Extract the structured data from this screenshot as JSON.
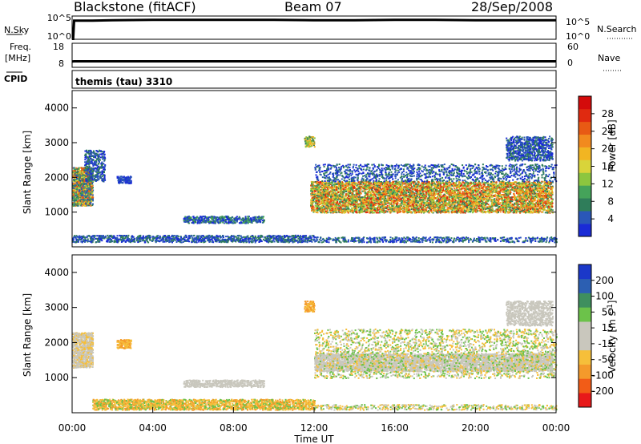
{
  "header": {
    "title": "Blackstone (fitACF)",
    "beam": "Beam 07",
    "date": "28/Sep/2008"
  },
  "left_labels": {
    "nsky": "N.Sky",
    "freq": "Freq.",
    "freq_unit": "[MHz]",
    "cpid": "CPID"
  },
  "right_labels": {
    "nsearch": "N.Search",
    "nave": "Nave"
  },
  "cpid_text": "themis (tau) 3310",
  "colors": {
    "power": [
      "#1a2bd6",
      "#2a57b8",
      "#2f7d5a",
      "#45a35a",
      "#8cc63f",
      "#d9d43a",
      "#f2b522",
      "#f28a1e",
      "#e85a14",
      "#e02a10",
      "#d40b0b"
    ],
    "vel": [
      "#e8191a",
      "#f25c17",
      "#f49a2b",
      "#f6bf3a",
      "#c9c7bd",
      "#c9c7bd",
      "#6cc24a",
      "#3f8f5e",
      "#2c5fb2",
      "#1b38c9"
    ]
  },
  "chart_data": [
    {
      "type": "line",
      "panel": "N.Sky / N.Search",
      "ylabel_left": "N.Sky",
      "ylabel_right": "N.Search",
      "y_ticks_left": [
        "10^5",
        "10^0"
      ],
      "y_ticks_right": [
        "10^5",
        "10^0"
      ],
      "x_hours": [
        0,
        0.05,
        0.1,
        1,
        2,
        4,
        6,
        8,
        10,
        12,
        14,
        16,
        18,
        20,
        22,
        24
      ],
      "series": [
        {
          "name": "N.Sky",
          "values": [
            0.1,
            0.1,
            4.3,
            4.3,
            4.4,
            4.5,
            4.5,
            4.5,
            4.5,
            4.4,
            4.4,
            4.5,
            4.5,
            4.4,
            4.4,
            4.4
          ]
        }
      ]
    },
    {
      "type": "line",
      "panel": "Freq / Nave",
      "ylabel_left": "Freq. [MHz]",
      "ylabel_right": "Nave",
      "y_ticks_left": [
        "18",
        "8"
      ],
      "y_ticks_right": [
        "60",
        "0"
      ],
      "x_hours": [
        0,
        0.1,
        6,
        12,
        18,
        20,
        21,
        24
      ],
      "series": [
        {
          "name": "Freq",
          "values": [
            10,
            10.1,
            10.1,
            10.1,
            10.1,
            10.1,
            10.1,
            10.1
          ]
        }
      ]
    },
    {
      "type": "heatmap",
      "title": "Power [dB]",
      "ylabel": "Slant Range [km]",
      "ylim": [
        0,
        4500
      ],
      "y_ticks": [
        1000,
        2000,
        3000,
        4000
      ],
      "xlim": [
        0,
        24
      ],
      "colorbar_label": "Power [dB]",
      "colorbar_ticks": [
        "28",
        "24",
        "20",
        "16",
        "12",
        "8",
        "4"
      ]
    },
    {
      "type": "heatmap",
      "title": "Velocity [m s-1]",
      "ylabel": "Slant Range [km]",
      "ylim": [
        0,
        4500
      ],
      "y_ticks": [
        1000,
        2000,
        3000,
        4000
      ],
      "xlim": [
        0,
        24
      ],
      "x_ticks": [
        "00:00",
        "04:00",
        "08:00",
        "12:00",
        "16:00",
        "20:00",
        "00:00"
      ],
      "xlabel": "Time UT",
      "colorbar_label": "Velocity [m s",
      "colorbar_label_sup": "-1",
      "colorbar_label_end": "]",
      "colorbar_ticks": [
        "200",
        "100",
        "50",
        "15",
        "-15",
        "-50",
        "-100",
        "-200"
      ]
    }
  ]
}
